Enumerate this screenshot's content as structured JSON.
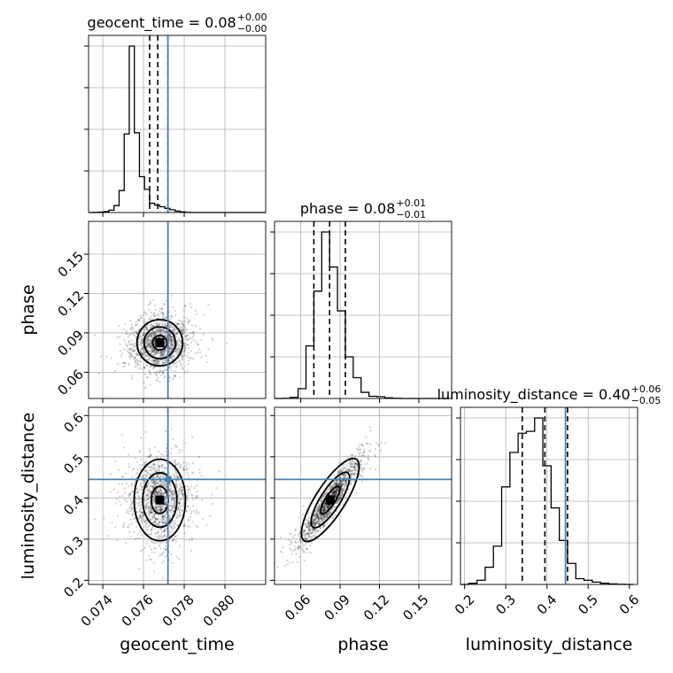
{
  "chart_data": {
    "type": "corner",
    "parameters": [
      {
        "name": "geocent_time",
        "label": "geocent_time",
        "title": {
          "prefix": "geocent_time = ",
          "value": "0.08",
          "sup": "+0.00",
          "sub": "−0.00"
        },
        "range": [
          0.0733,
          0.082
        ],
        "ticks": [
          0.074,
          0.076,
          0.078,
          0.08
        ],
        "tick_labels": [
          "0.074",
          "0.076",
          "0.078",
          "0.080"
        ],
        "truth": 0.0772,
        "quantiles": [
          0.0763,
          0.0767,
          0.0772
        ],
        "hist_bins": [
          0.0733,
          0.07355,
          0.0738,
          0.07405,
          0.0743,
          0.07455,
          0.0748,
          0.07505,
          0.0753,
          0.07555,
          0.0758,
          0.07605,
          0.0763,
          0.07655,
          0.0768,
          0.07705,
          0.0773,
          0.07755,
          0.0778,
          0.07805,
          0.0783,
          0.07855,
          0.0788,
          0.07905,
          0.0793,
          0.07955,
          0.0798,
          0.08005,
          0.0803,
          0.08055,
          0.0808,
          0.08105,
          0.0813,
          0.08155,
          0.0818,
          0.082
        ],
        "hist_counts": [
          0,
          1,
          2,
          4,
          10,
          30,
          95,
          340,
          720,
          345,
          155,
          100,
          40,
          32,
          25,
          18,
          12,
          6,
          3,
          1,
          0,
          0,
          0,
          0,
          0,
          0,
          0,
          0,
          0,
          0,
          0,
          0,
          0,
          0,
          0
        ]
      },
      {
        "name": "phase",
        "label": "phase",
        "title": {
          "prefix": "phase = ",
          "value": "0.08",
          "sup": "+0.01",
          "sub": "−0.01"
        },
        "range": [
          0.04,
          0.175
        ],
        "ticks": [
          0.06,
          0.09,
          0.12,
          0.15
        ],
        "tick_labels": [
          "0.06",
          "0.09",
          "0.12",
          "0.15"
        ],
        "quantiles": [
          0.07,
          0.082,
          0.094
        ],
        "hist_bins": [
          0.04,
          0.046,
          0.052,
          0.058,
          0.064,
          0.07,
          0.076,
          0.082,
          0.088,
          0.094,
          0.1,
          0.106,
          0.112,
          0.118,
          0.124,
          0.13,
          0.136,
          0.142,
          0.148,
          0.154,
          0.16,
          0.166,
          0.172
        ],
        "hist_counts": [
          0,
          1,
          5,
          45,
          240,
          490,
          760,
          600,
          400,
          190,
          95,
          28,
          10,
          8,
          3,
          1,
          0,
          0,
          0,
          0,
          0,
          0
        ]
      },
      {
        "name": "luminosity_distance",
        "label": "luminosity_distance",
        "title": {
          "prefix": "luminosity_distance = ",
          "value": "0.40",
          "sup": "+0.06",
          "sub": "−0.05"
        },
        "range": [
          0.19,
          0.62
        ],
        "ticks": [
          0.2,
          0.3,
          0.4,
          0.5,
          0.6
        ],
        "tick_labels": [
          "0.2",
          "0.3",
          "0.4",
          "0.5",
          "0.6"
        ],
        "truth": 0.445,
        "quantiles": [
          0.34,
          0.395,
          0.45
        ],
        "hist_bins": [
          0.19,
          0.21,
          0.23,
          0.25,
          0.27,
          0.29,
          0.31,
          0.33,
          0.35,
          0.37,
          0.39,
          0.41,
          0.43,
          0.45,
          0.47,
          0.49,
          0.51,
          0.53,
          0.55,
          0.57,
          0.59,
          0.61
        ],
        "hist_counts": [
          0,
          6,
          22,
          90,
          200,
          510,
          690,
          790,
          800,
          870,
          620,
          400,
          230,
          110,
          30,
          22,
          12,
          6,
          3,
          1,
          0
        ]
      }
    ],
    "pairs": [
      {
        "x": "geocent_time",
        "y": "phase",
        "truth": [
          0.0772,
          null
        ],
        "center": [
          0.0768,
          0.0825
        ],
        "spread": [
          0.0007,
          0.011
        ],
        "corr": 0.1,
        "contour_levels": [
          0.5,
          1.1,
          1.6
        ],
        "y_range": [
          0.04,
          0.175
        ],
        "y_ticks": [
          0.06,
          0.09,
          0.12,
          0.15
        ],
        "y_tick_labels": [
          "0.06",
          "0.09",
          "0.12",
          "0.15"
        ]
      },
      {
        "x": "geocent_time",
        "y": "luminosity_distance",
        "truth": [
          0.0772,
          0.445
        ],
        "center": [
          0.0768,
          0.395
        ],
        "spread": [
          0.0007,
          0.055
        ],
        "corr": 0.0,
        "contour_levels": [
          0.6,
          1.2,
          1.8
        ]
      },
      {
        "x": "phase",
        "y": "luminosity_distance",
        "truth": [
          null,
          0.445
        ],
        "center": [
          0.0825,
          0.395
        ],
        "spread": [
          0.011,
          0.055
        ],
        "corr": 0.94,
        "contour_levels": [
          0.6,
          1.2,
          1.8
        ]
      }
    ],
    "grid": true
  }
}
